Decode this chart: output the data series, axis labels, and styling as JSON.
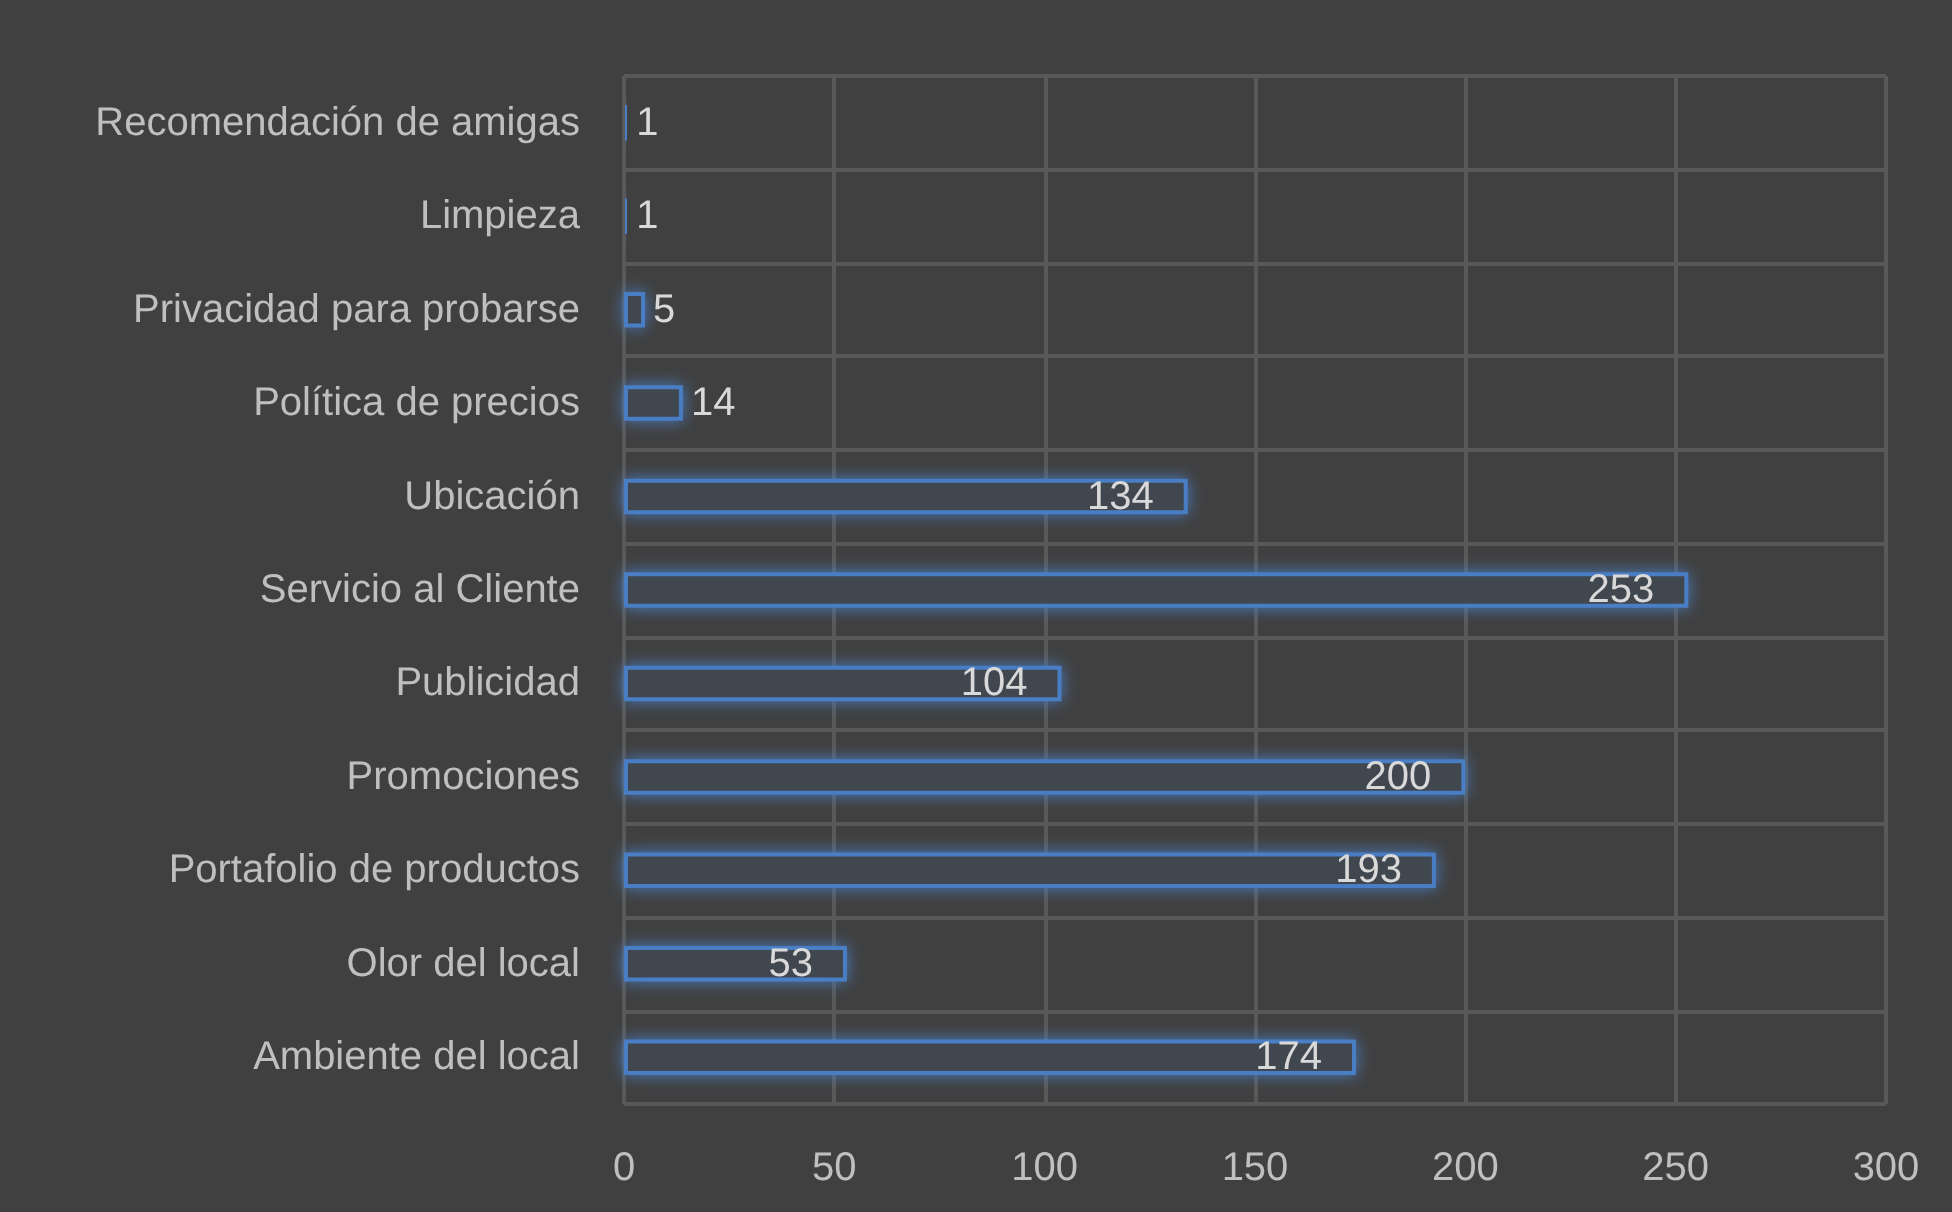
{
  "chart_data": {
    "type": "bar",
    "orientation": "horizontal",
    "categories": [
      "Recomendación de amigas",
      "Limpieza",
      "Privacidad para probarse",
      "Política de precios",
      "Ubicación",
      "Servicio al Cliente",
      "Publicidad",
      "Promociones",
      "Portafolio de productos",
      "Olor del local",
      "Ambiente del local"
    ],
    "values": [
      1,
      1,
      5,
      14,
      134,
      253,
      104,
      200,
      193,
      53,
      174
    ],
    "color": "#4a7ec4",
    "xlim": [
      0,
      300
    ],
    "xticks": [
      0,
      50,
      100,
      150,
      200,
      250,
      300
    ],
    "grid": true,
    "data_labels": true
  }
}
